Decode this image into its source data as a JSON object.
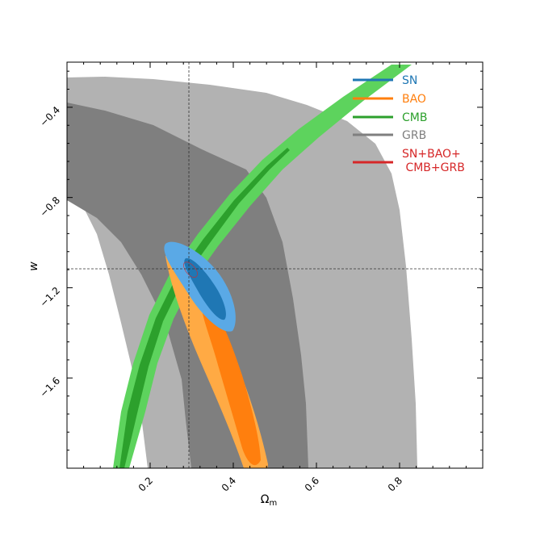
{
  "chart_data": {
    "type": "contour",
    "xlabel": "Ω",
    "xlabel_sub": "m",
    "ylabel": "w",
    "xlim": [
      0.0,
      1.0
    ],
    "ylim": [
      -2.0,
      -0.2
    ],
    "xticks": [
      0.2,
      0.4,
      0.6,
      0.8
    ],
    "xtick_labels": [
      "0.2",
      "0.4",
      "0.6",
      "0.8"
    ],
    "yticks": [
      -1.6,
      -1.2,
      -0.8,
      -0.4
    ],
    "ytick_labels": [
      "−1.6",
      "−1.2",
      "−0.8",
      "−0.4"
    ],
    "reference_lines": {
      "x": 0.29,
      "y": -1.0
    },
    "grid": false,
    "legend_placement": "top-right",
    "colors": {
      "SN": "#1f77b4",
      "SN_1sigma": "#1f77b4",
      "SN_2sigma": "#5aa9e6",
      "BAO": "#ff7f0e",
      "BAO_1sigma": "#ff7f0e",
      "BAO_2sigma": "#ffaa44",
      "CMB": "#2ca02c",
      "CMB_1sigma": "#2ca02c",
      "CMB_2sigma": "#5dd35d",
      "GRB": "#7f7f7f",
      "GRB_1sigma": "#7f7f7f",
      "GRB_2sigma": "#b2b2b2",
      "Combined": "#d62728"
    },
    "series": [
      {
        "name": "SN",
        "legend": "SN",
        "color": "#1f77b4",
        "contours": {
          "center": [
            0.34,
            -1.15
          ],
          "tilt": "negative"
        }
      },
      {
        "name": "BAO",
        "legend": "BAO",
        "color": "#ff7f0e",
        "contours": {
          "center": [
            0.39,
            -1.5
          ],
          "tilt": "negative"
        }
      },
      {
        "name": "CMB",
        "legend": "CMB",
        "color": "#2ca02c",
        "contours": {
          "shape": "curved band"
        }
      },
      {
        "name": "GRB",
        "legend": "GRB",
        "color": "#7f7f7f",
        "contours": {
          "shape": "broad banana"
        }
      },
      {
        "name": "SN+BAO+CMB+GRB",
        "legend": [
          "SN+BAO+",
          " CMB+GRB"
        ],
        "color": "#d62728",
        "contours": {
          "center": [
            0.29,
            -1.0
          ]
        }
      }
    ]
  }
}
